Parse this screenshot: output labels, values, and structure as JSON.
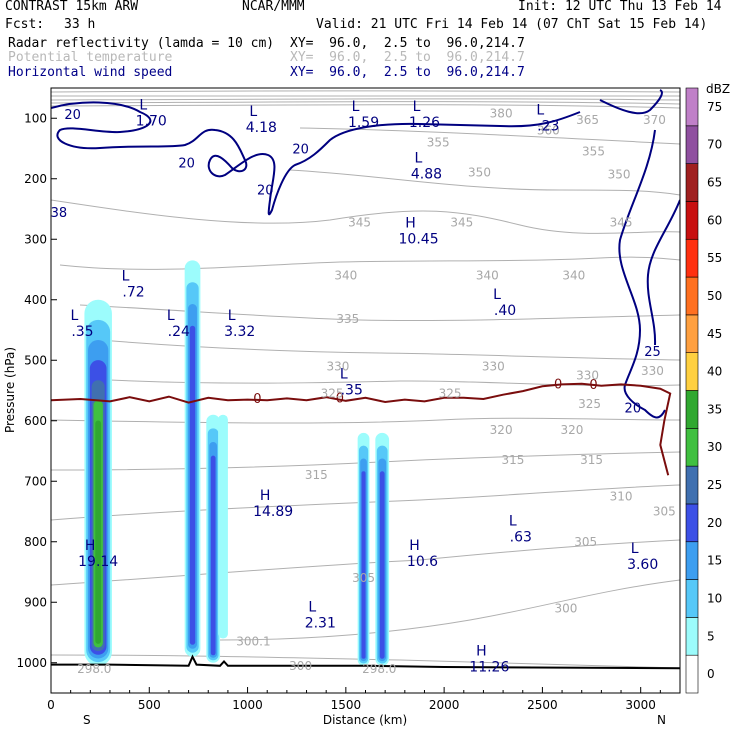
{
  "header": {
    "model": "CONTRAST 15km ARW",
    "center": "NCAR/MMM",
    "init": "Init: 12 UTC Thu 13 Feb 14",
    "fcst_label": "Fcst:",
    "fcst_value": "33 h",
    "valid": "Valid: 21 UTC Fri 14 Feb 14 (07 ChT Sat 15 Feb 14)"
  },
  "fields": [
    {
      "name": "Radar reflectivity (lamda = 10 cm)",
      "xy": "XY=  96.0,  2.5 to  96.0,214.7",
      "color": "#000000"
    },
    {
      "name": "Potential temperature",
      "xy": "XY=  96.0,  2.5 to  96.0,214.7",
      "color": "#b8b8b8"
    },
    {
      "name": "Horizontal wind speed",
      "xy": "XY=  96.0,  2.5 to  96.0,214.7",
      "color": "#000088"
    }
  ],
  "chart_data": {
    "type": "cross-section",
    "xlabel": "Distance (km)",
    "ylabel": "Pressure (hPa)",
    "xlim": [
      0,
      3200
    ],
    "ylim": [
      1050,
      50
    ],
    "x_ticks": [
      0,
      500,
      1000,
      1500,
      2000,
      2500,
      3000
    ],
    "y_ticks": [
      100,
      200,
      300,
      400,
      500,
      600,
      700,
      800,
      900,
      1000
    ],
    "end_labels": {
      "left": "S",
      "right": "N"
    },
    "colorbar": {
      "title": "dBZ",
      "levels": [
        "0",
        "5",
        "10",
        "15",
        "20",
        "25",
        "30",
        "35",
        "40",
        "45",
        "50",
        "55",
        "60",
        "65",
        "70",
        "75"
      ],
      "colors": [
        "#ffffff",
        "#9cfcfc",
        "#56c8f8",
        "#3d9ef0",
        "#3c50e6",
        "#4070b0",
        "#40c040",
        "#30a830",
        "#ffd040",
        "#ffa040",
        "#ff7020",
        "#ff3010",
        "#c81010",
        "#a02020",
        "#9050a0",
        "#c080c8"
      ]
    },
    "theta_contours": {
      "levels": [
        300,
        305,
        310,
        315,
        320,
        325,
        330,
        335,
        340,
        345,
        350,
        355,
        360,
        365,
        370,
        380
      ],
      "labels": [
        {
          "text": "380",
          "x": 2290,
          "p": 92
        },
        {
          "text": "360",
          "x": 2530,
          "p": 120
        },
        {
          "text": "365",
          "x": 2730,
          "p": 103
        },
        {
          "text": "370",
          "x": 3070,
          "p": 103
        },
        {
          "text": "355",
          "x": 1970,
          "p": 140
        },
        {
          "text": "355",
          "x": 2760,
          "p": 155
        },
        {
          "text": "350",
          "x": 2180,
          "p": 190
        },
        {
          "text": "350",
          "x": 2890,
          "p": 193
        },
        {
          "text": "345",
          "x": 1570,
          "p": 272
        },
        {
          "text": "345",
          "x": 2090,
          "p": 272
        },
        {
          "text": "345",
          "x": 2900,
          "p": 272
        },
        {
          "text": "340",
          "x": 1500,
          "p": 360
        },
        {
          "text": "340",
          "x": 2220,
          "p": 360
        },
        {
          "text": "340",
          "x": 2660,
          "p": 360
        },
        {
          "text": "335",
          "x": 1510,
          "p": 432
        },
        {
          "text": "330",
          "x": 1460,
          "p": 510
        },
        {
          "text": "330",
          "x": 2250,
          "p": 510
        },
        {
          "text": "330",
          "x": 2730,
          "p": 525
        },
        {
          "text": "330",
          "x": 3060,
          "p": 518
        },
        {
          "text": "325",
          "x": 1430,
          "p": 555
        },
        {
          "text": "325",
          "x": 2030,
          "p": 555
        },
        {
          "text": "325",
          "x": 2740,
          "p": 572
        },
        {
          "text": "320",
          "x": 2290,
          "p": 615
        },
        {
          "text": "320",
          "x": 2650,
          "p": 615
        },
        {
          "text": "315",
          "x": 1350,
          "p": 690
        },
        {
          "text": "315",
          "x": 2350,
          "p": 665
        },
        {
          "text": "315",
          "x": 2750,
          "p": 665
        },
        {
          "text": "310",
          "x": 2900,
          "p": 725
        },
        {
          "text": "305",
          "x": 1590,
          "p": 860
        },
        {
          "text": "305",
          "x": 2720,
          "p": 800
        },
        {
          "text": "305",
          "x": 3120,
          "p": 750
        },
        {
          "text": "300",
          "x": 2620,
          "p": 910
        },
        {
          "text": "300.1",
          "x": 1030,
          "p": 965
        },
        {
          "text": "300",
          "x": 1270,
          "p": 1005
        },
        {
          "text": "298.0",
          "x": 1670,
          "p": 1010
        },
        {
          "text": "298.0",
          "x": 220,
          "p": 1010
        }
      ]
    },
    "wind_contours": {
      "labels": [
        {
          "text": "20",
          "x": 110,
          "p": 93
        },
        {
          "text": "20",
          "x": 690,
          "p": 173
        },
        {
          "text": "20",
          "x": 1090,
          "p": 218
        },
        {
          "text": "20",
          "x": 1270,
          "p": 150
        },
        {
          "text": "25",
          "x": 3060,
          "p": 485
        },
        {
          "text": "20",
          "x": 2960,
          "p": 578
        },
        {
          "text": "38",
          "x": 40,
          "p": 255
        }
      ]
    },
    "freezing_level": {
      "label": "0",
      "points": [
        [
          0,
          566
        ],
        [
          150,
          564
        ],
        [
          300,
          568
        ],
        [
          400,
          561
        ],
        [
          500,
          568
        ],
        [
          600,
          560
        ],
        [
          700,
          570
        ],
        [
          800,
          562
        ],
        [
          900,
          566
        ],
        [
          1000,
          565
        ],
        [
          1100,
          566
        ],
        [
          1200,
          563
        ],
        [
          1300,
          566
        ],
        [
          1400,
          561
        ],
        [
          1500,
          567
        ],
        [
          1600,
          562
        ],
        [
          1700,
          569
        ],
        [
          1800,
          565
        ],
        [
          1900,
          568
        ],
        [
          2000,
          562
        ],
        [
          2100,
          562
        ],
        [
          2200,
          564
        ],
        [
          2300,
          557
        ],
        [
          2400,
          551
        ],
        [
          2500,
          543
        ],
        [
          2600,
          540
        ],
        [
          2700,
          539
        ],
        [
          2800,
          542
        ],
        [
          2900,
          540
        ],
        [
          3000,
          542
        ],
        [
          3100,
          547
        ],
        [
          3150,
          555
        ],
        [
          3120,
          600
        ],
        [
          3100,
          640
        ],
        [
          3140,
          690
        ]
      ],
      "labels_at": [
        [
          1050,
          564
        ],
        [
          1470,
          563
        ],
        [
          2580,
          540
        ],
        [
          2760,
          541
        ]
      ]
    },
    "extrema": [
      {
        "kind": "L",
        "value": "1.70",
        "x": 510,
        "p": 92
      },
      {
        "kind": "L",
        "value": "4.18",
        "x": 1070,
        "p": 103
      },
      {
        "kind": "L",
        "value": "1.59",
        "x": 1590,
        "p": 95
      },
      {
        "kind": "L",
        "value": "1.26",
        "x": 1900,
        "p": 95
      },
      {
        "kind": "L",
        "value": ".23",
        "x": 2530,
        "p": 100
      },
      {
        "kind": "L",
        "value": "4.88",
        "x": 1910,
        "p": 180
      },
      {
        "kind": "H",
        "value": "10.45",
        "x": 1870,
        "p": 287
      },
      {
        "kind": "L",
        "value": ".72",
        "x": 420,
        "p": 375
      },
      {
        "kind": "L",
        "value": ".40",
        "x": 2310,
        "p": 405
      },
      {
        "kind": "L",
        "value": ".35",
        "x": 160,
        "p": 440
      },
      {
        "kind": "L",
        "value": ".24",
        "x": 650,
        "p": 440
      },
      {
        "kind": "L",
        "value": "3.32",
        "x": 960,
        "p": 440
      },
      {
        "kind": "L",
        "value": ".35",
        "x": 1530,
        "p": 537
      },
      {
        "kind": "H",
        "value": "14.89",
        "x": 1130,
        "p": 738
      },
      {
        "kind": "L",
        "value": ".63",
        "x": 2390,
        "p": 780
      },
      {
        "kind": "H",
        "value": "19.14",
        "x": 240,
        "p": 820
      },
      {
        "kind": "H",
        "value": "10.6",
        "x": 1890,
        "p": 820
      },
      {
        "kind": "L",
        "value": "3.60",
        "x": 3010,
        "p": 825
      },
      {
        "kind": "L",
        "value": "2.31",
        "x": 1370,
        "p": 922
      },
      {
        "kind": "H",
        "value": "11.26",
        "x": 2230,
        "p": 995
      }
    ],
    "reflectivity_cells": [
      {
        "x0": 170,
        "x1": 310,
        "ptop": 400,
        "pbot": 1005,
        "core_dbz": 35
      },
      {
        "x0": 680,
        "x1": 760,
        "ptop": 335,
        "pbot": 990,
        "core_dbz": 20
      },
      {
        "x0": 790,
        "x1": 860,
        "ptop": 590,
        "pbot": 1000,
        "core_dbz": 20
      },
      {
        "x0": 850,
        "x1": 900,
        "ptop": 590,
        "pbot": 960,
        "core_dbz": 5
      },
      {
        "x0": 1560,
        "x1": 1620,
        "ptop": 620,
        "pbot": 1005,
        "core_dbz": 20
      },
      {
        "x0": 1650,
        "x1": 1720,
        "ptop": 620,
        "pbot": 1005,
        "core_dbz": 20
      }
    ],
    "surface_pressure": [
      [
        0,
        1003
      ],
      [
        300,
        1003
      ],
      [
        700,
        1005
      ],
      [
        720,
        990
      ],
      [
        740,
        1003
      ],
      [
        860,
        1005
      ],
      [
        880,
        998
      ],
      [
        900,
        1005
      ],
      [
        1600,
        1005
      ],
      [
        2000,
        1007
      ],
      [
        3200,
        1009
      ]
    ]
  }
}
